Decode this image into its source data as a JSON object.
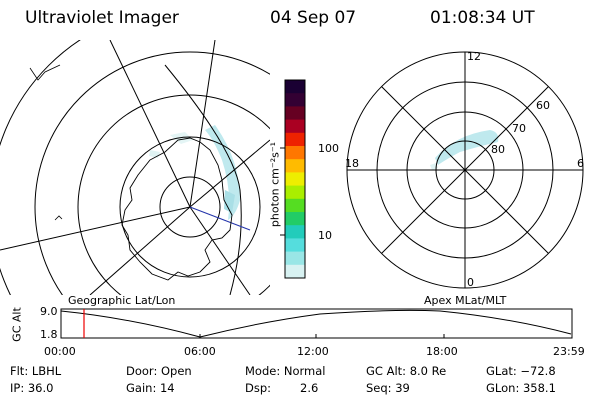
{
  "header": {
    "instrument": "Ultraviolet Imager",
    "date": "04 Sep 07",
    "time": "01:08:34 UT"
  },
  "left_panel": {
    "caption": "Geographic Lat/Lon"
  },
  "right_panel": {
    "caption": "Apex MLat/MLT",
    "mlt_labels": {
      "top": "12",
      "bottom": "0",
      "left": "18",
      "right": "6"
    },
    "lat_labels": [
      "60",
      "70",
      "80"
    ]
  },
  "colorbar": {
    "unit_label": "photon cm⁻²s⁻¹",
    "tick_labels": [
      "100",
      "10"
    ],
    "colors": [
      "#1a0033",
      "#330033",
      "#660022",
      "#aa0022",
      "#ee2200",
      "#ff7700",
      "#ffbb00",
      "#eeee00",
      "#aaee00",
      "#55dd22",
      "#22cc66",
      "#22ccbb",
      "#55dddd",
      "#99e6e6",
      "#d8f2f2"
    ]
  },
  "timeline": {
    "ylabel": "GC Alt",
    "y_ticks": [
      "9.0",
      "1.8"
    ],
    "x_ticks": [
      "00:00",
      "06:00",
      "12:00",
      "18:00",
      "23:59"
    ],
    "marker_color": "#ee0000"
  },
  "info": {
    "row1": [
      "Flt: LBHL",
      "Door: Open",
      "Mode: Normal",
      "GC Alt: 8.0 Re",
      "GLat: −72.8"
    ],
    "row2": [
      "IP: 36.0",
      "Gain: 14",
      "Dsp:",
      "2.6",
      "Seq: 39",
      "GLon: 358.1"
    ]
  }
}
